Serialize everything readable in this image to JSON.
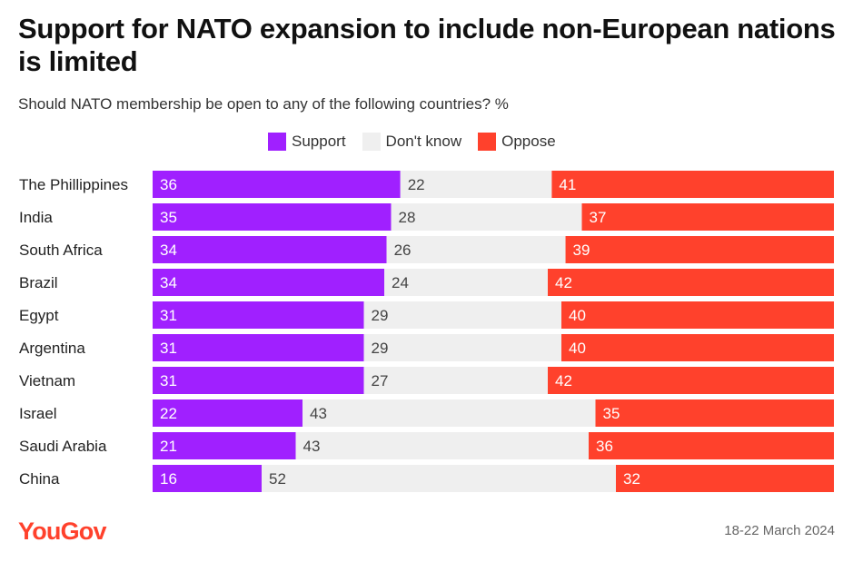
{
  "title": "Support for NATO expansion to include non-European nations is limited",
  "subtitle": "Should NATO membership be open to any of the following countries? %",
  "legend": [
    {
      "label": "Support",
      "color": "#a020ff"
    },
    {
      "label": "Don't know",
      "color": "#efefef"
    },
    {
      "label": "Oppose",
      "color": "#ff412c"
    }
  ],
  "footer": {
    "logo": "YouGov",
    "date": "18-22 March 2024"
  },
  "chart_data": {
    "type": "bar",
    "orientation": "horizontal-stacked",
    "categories": [
      "The Phillippines",
      "India",
      "South Africa",
      "Brazil",
      "Egypt",
      "Argentina",
      "Vietnam",
      "Israel",
      "Saudi Arabia",
      "China"
    ],
    "series": [
      {
        "name": "Support",
        "color": "#a020ff",
        "values": [
          36,
          35,
          34,
          34,
          31,
          31,
          31,
          22,
          21,
          16
        ]
      },
      {
        "name": "Don't know",
        "color": "#efefef",
        "values": [
          22,
          28,
          26,
          24,
          29,
          29,
          27,
          43,
          43,
          52
        ]
      },
      {
        "name": "Oppose",
        "color": "#ff412c",
        "values": [
          41,
          37,
          39,
          42,
          40,
          40,
          42,
          35,
          36,
          32
        ]
      }
    ]
  }
}
